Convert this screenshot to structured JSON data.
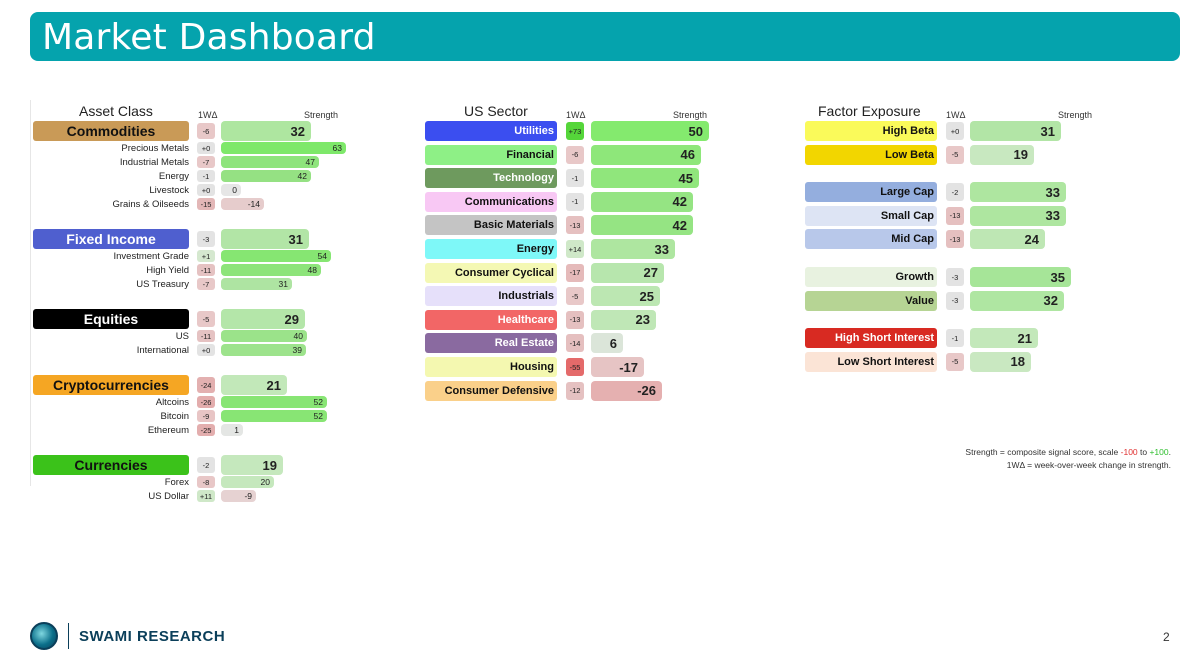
{
  "header": {
    "title": "Market Dashboard"
  },
  "columns": {
    "change": "1WΔ",
    "strength": "Strength"
  },
  "asset_class": {
    "title": "Asset Class",
    "groups": [
      {
        "label": "Commodities",
        "color": "#c99a57",
        "text_color": "#111111",
        "change": "-6",
        "change_bg": "#e8c8c8",
        "value": 32,
        "bar_color": "#aee6a0",
        "items": [
          {
            "label": "Precious Metals",
            "change": "+0",
            "change_bg": "#e3e3e3",
            "value": 63,
            "bar_color": "#7ee86a"
          },
          {
            "label": "Industrial Metals",
            "change": "-7",
            "change_bg": "#e8c8c8",
            "value": 47,
            "bar_color": "#8ee47c"
          },
          {
            "label": "Energy",
            "change": "-1",
            "change_bg": "#e3e3e3",
            "value": 42,
            "bar_color": "#95e183"
          },
          {
            "label": "Livestock",
            "change": "+0",
            "change_bg": "#e3e3e3",
            "value": 0,
            "bar_color": "#e6e6e6"
          },
          {
            "label": "Grains & Oilseeds",
            "change": "-15",
            "change_bg": "#e3b7b7",
            "value": -14,
            "bar_color": "#e6cccc"
          }
        ]
      },
      {
        "label": "Fixed Income",
        "color": "#4f5fcf",
        "text_color": "#ffffff",
        "change": "-3",
        "change_bg": "#e3e3e3",
        "value": 31,
        "bar_color": "#b2e5a6",
        "items": [
          {
            "label": "Investment Grade",
            "change": "+1",
            "change_bg": "#d5e8cf",
            "value": 54,
            "bar_color": "#86e672"
          },
          {
            "label": "High Yield",
            "change": "-11",
            "change_bg": "#e5c2c2",
            "value": 48,
            "bar_color": "#8de47a"
          },
          {
            "label": "US Treasury",
            "change": "-7",
            "change_bg": "#e8c8c8",
            "value": 31,
            "bar_color": "#aee4a2"
          }
        ]
      },
      {
        "label": "Equities",
        "color": "#000000",
        "text_color": "#ffffff",
        "change": "-5",
        "change_bg": "#e8c8c8",
        "value": 29,
        "bar_color": "#b4e6a9",
        "items": [
          {
            "label": "US",
            "change": "-11",
            "change_bg": "#e5c2c2",
            "value": 40,
            "bar_color": "#9be38a"
          },
          {
            "label": "International",
            "change": "+0",
            "change_bg": "#e3e3e3",
            "value": 39,
            "bar_color": "#9de38c"
          }
        ]
      },
      {
        "label": "Cryptocurrencies",
        "color": "#f5a623",
        "text_color": "#111111",
        "change": "-24",
        "change_bg": "#e3b0b0",
        "value": 21,
        "bar_color": "#c2e8b9",
        "items": [
          {
            "label": "Altcoins",
            "change": "-26",
            "change_bg": "#e3adad",
            "value": 52,
            "bar_color": "#88e574"
          },
          {
            "label": "Bitcoin",
            "change": "-9",
            "change_bg": "#e8c5c5",
            "value": 52,
            "bar_color": "#88e574"
          },
          {
            "label": "Ethereum",
            "change": "-25",
            "change_bg": "#e3aeae",
            "value": 1,
            "bar_color": "#e4e6e4"
          }
        ]
      },
      {
        "label": "Currencies",
        "color": "#3bc21a",
        "text_color": "#111111",
        "change": "-2",
        "change_bg": "#e3e3e3",
        "value": 19,
        "bar_color": "#c5e8bd",
        "items": [
          {
            "label": "Forex",
            "change": "-8",
            "change_bg": "#e8c7c7",
            "value": 20,
            "bar_color": "#c5e8bd"
          },
          {
            "label": "US Dollar",
            "change": "+11",
            "change_bg": "#cfe8c8",
            "value": -9,
            "bar_color": "#e6d2d2"
          }
        ]
      }
    ]
  },
  "us_sector": {
    "title": "US Sector",
    "rows": [
      {
        "label": "Utilities",
        "color": "#3b4ef0",
        "text_color": "#ffffff",
        "change": "+73",
        "change_bg": "#55d63a",
        "value": 50,
        "bar_color": "#84ea6e"
      },
      {
        "label": "Financial",
        "color": "#8ef086",
        "text_color": "#111111",
        "change": "-6",
        "change_bg": "#e8c8c8",
        "value": 46,
        "bar_color": "#8ee77a"
      },
      {
        "label": "Technology",
        "color": "#6e9a5e",
        "text_color": "#ffffff",
        "change": "-1",
        "change_bg": "#e3e3e3",
        "value": 45,
        "bar_color": "#90e67c"
      },
      {
        "label": "Communications",
        "color": "#f8c8f4",
        "text_color": "#111111",
        "change": "-1",
        "change_bg": "#e3e3e3",
        "value": 42,
        "bar_color": "#95e483"
      },
      {
        "label": "Basic Materials",
        "color": "#c4c4c4",
        "text_color": "#111111",
        "change": "-13",
        "change_bg": "#e5c0c0",
        "value": 42,
        "bar_color": "#95e483"
      },
      {
        "label": "Energy",
        "color": "#7ef8f8",
        "text_color": "#111111",
        "change": "+14",
        "change_bg": "#cfe8c8",
        "value": 33,
        "bar_color": "#aee6a0"
      },
      {
        "label": "Consumer Cyclical",
        "color": "#f4f8b4",
        "text_color": "#111111",
        "change": "-17",
        "change_bg": "#e5baba",
        "value": 27,
        "bar_color": "#b7e6ad"
      },
      {
        "label": "Industrials",
        "color": "#e6e0fa",
        "text_color": "#111111",
        "change": "-5",
        "change_bg": "#e8c8c8",
        "value": 25,
        "bar_color": "#bce7b2"
      },
      {
        "label": "Healthcare",
        "color": "#f26666",
        "text_color": "#ffffff",
        "change": "-13",
        "change_bg": "#e5c0c0",
        "value": 23,
        "bar_color": "#bfe7b6"
      },
      {
        "label": "Real Estate",
        "color": "#8a6aa0",
        "text_color": "#ffffff",
        "change": "-14",
        "change_bg": "#e5bfbf",
        "value": 6,
        "bar_color": "#dbe5d9"
      },
      {
        "label": "Housing",
        "color": "#f4f8b0",
        "text_color": "#111111",
        "change": "-55",
        "change_bg": "#e46a6a",
        "value": -17,
        "bar_color": "#e6c4c4"
      },
      {
        "label": "Consumer Defensive",
        "color": "#fad08a",
        "text_color": "#111111",
        "change": "-12",
        "change_bg": "#e5c1c1",
        "value": -26,
        "bar_color": "#e5b0b0"
      }
    ]
  },
  "factor_exposure": {
    "title": "Factor Exposure",
    "rows": [
      {
        "label": "High Beta",
        "color": "#fafa5a",
        "text_color": "#111111",
        "change": "+0",
        "change_bg": "#e3e3e3",
        "value": 31,
        "bar_color": "#b2e5a6",
        "gap_before": false
      },
      {
        "label": "Low Beta",
        "color": "#f2d600",
        "text_color": "#111111",
        "change": "-5",
        "change_bg": "#e8c8c8",
        "value": 19,
        "bar_color": "#c8e8c0",
        "gap_before": false
      },
      {
        "label": "Large Cap",
        "color": "#94aede",
        "text_color": "#111111",
        "change": "-2",
        "change_bg": "#e3e3e3",
        "value": 33,
        "bar_color": "#aee6a0",
        "gap_before": true
      },
      {
        "label": "Small Cap",
        "color": "#dde4f4",
        "text_color": "#111111",
        "change": "-13",
        "change_bg": "#e5c0c0",
        "value": 33,
        "bar_color": "#aee6a0",
        "gap_before": false
      },
      {
        "label": "Mid Cap",
        "color": "#b8c8ea",
        "text_color": "#111111",
        "change": "-13",
        "change_bg": "#e5c0c0",
        "value": 24,
        "bar_color": "#bee7b4",
        "gap_before": false
      },
      {
        "label": "Growth",
        "color": "#e8f2e0",
        "text_color": "#111111",
        "change": "-3",
        "change_bg": "#e3e3e3",
        "value": 35,
        "bar_color": "#a6e598",
        "gap_before": true
      },
      {
        "label": "Value",
        "color": "#b6d494",
        "text_color": "#111111",
        "change": "-3",
        "change_bg": "#e3e3e3",
        "value": 32,
        "bar_color": "#afe6a2",
        "gap_before": false
      },
      {
        "label": "High Short Interest",
        "color": "#d82a22",
        "text_color": "#ffffff",
        "change": "-1",
        "change_bg": "#e3e3e3",
        "value": 21,
        "bar_color": "#c3e8ba",
        "gap_before": true
      },
      {
        "label": "Low Short Interest",
        "color": "#fbe4d6",
        "text_color": "#111111",
        "change": "-5",
        "change_bg": "#e8c8c8",
        "value": 18,
        "bar_color": "#c9e8c1",
        "gap_before": false
      }
    ]
  },
  "notes": {
    "line1_prefix": "Strength = composite signal score, scale ",
    "line1_neg": "-100",
    "line1_mid": " to ",
    "line1_pos": "+100",
    "line1_suffix": ".",
    "line2": "1WΔ = week-over-week change in strength."
  },
  "footer": {
    "brand": "SWAMI RESEARCH",
    "page_number": "2"
  }
}
